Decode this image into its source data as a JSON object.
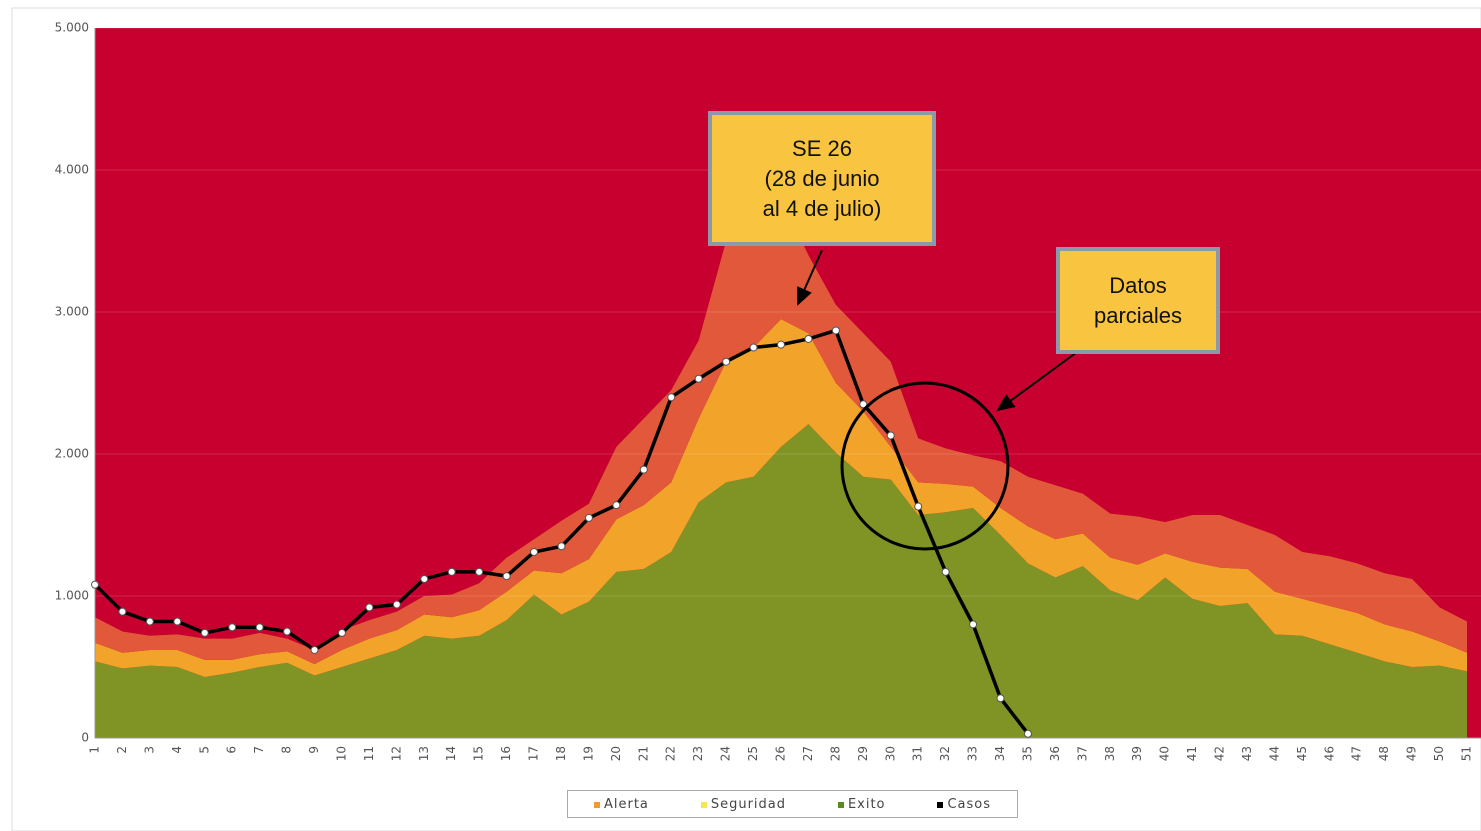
{
  "chart_data": {
    "type": "area",
    "categories": [
      "1",
      "2",
      "3",
      "4",
      "5",
      "6",
      "7",
      "8",
      "9",
      "10",
      "11",
      "12",
      "13",
      "14",
      "15",
      "16",
      "17",
      "18",
      "19",
      "20",
      "21",
      "22",
      "23",
      "24",
      "25",
      "26",
      "27",
      "28",
      "29",
      "30",
      "31",
      "32",
      "33",
      "34",
      "35",
      "36",
      "37",
      "38",
      "39",
      "40",
      "41",
      "42",
      "43",
      "44",
      "45",
      "46",
      "47",
      "48",
      "49",
      "50",
      "51"
    ],
    "series": [
      {
        "name": "Exito",
        "color": "#7f9424",
        "values": [
          540,
          490,
          510,
          500,
          430,
          460,
          500,
          530,
          440,
          500,
          560,
          620,
          720,
          700,
          720,
          830,
          1010,
          870,
          960,
          1170,
          1190,
          1310,
          1660,
          1800,
          1840,
          2050,
          2210,
          2010,
          1840,
          1820,
          1570,
          1590,
          1620,
          1430,
          1230,
          1130,
          1210,
          1040,
          970,
          1130,
          980,
          930,
          950,
          730,
          720,
          660,
          600,
          540,
          500,
          510,
          470
        ]
      },
      {
        "name": "Seguridad",
        "color": "#f2a42a",
        "values": [
          130,
          110,
          110,
          120,
          120,
          90,
          90,
          80,
          80,
          120,
          140,
          140,
          150,
          150,
          180,
          200,
          170,
          290,
          300,
          370,
          450,
          490,
          590,
          850,
          910,
          900,
          640,
          490,
          460,
          230,
          230,
          200,
          150,
          190,
          260,
          270,
          230,
          230,
          250,
          170,
          260,
          270,
          240,
          300,
          260,
          270,
          280,
          260,
          250,
          170,
          130
        ]
      },
      {
        "name": "Alerta",
        "color": "#e2583a",
        "values": [
          180,
          150,
          100,
          110,
          150,
          150,
          150,
          90,
          100,
          140,
          130,
          130,
          130,
          160,
          190,
          240,
          220,
          370,
          390,
          510,
          610,
          650,
          550,
          850,
          1050,
          850,
          550,
          550,
          550,
          600,
          310,
          250,
          220,
          330,
          350,
          380,
          280,
          310,
          340,
          220,
          330,
          370,
          310,
          400,
          330,
          350,
          350,
          360,
          370,
          240,
          220
        ]
      },
      {
        "name": "Casos",
        "color": "#000000",
        "line": true,
        "values": [
          1080,
          890,
          820,
          820,
          740,
          780,
          780,
          750,
          620,
          740,
          920,
          940,
          1120,
          1170,
          1170,
          1140,
          1310,
          1350,
          1550,
          1640,
          1890,
          2400,
          2530,
          2650,
          2750,
          2770,
          2810,
          2870,
          2350,
          2130,
          1630,
          1170,
          800,
          280,
          30,
          null,
          null,
          null,
          null,
          null,
          null,
          null,
          null,
          null,
          null,
          null,
          null,
          null,
          null,
          null,
          null
        ]
      }
    ],
    "background_color": "#c8002f",
    "ylim": [
      0,
      5000
    ],
    "yticks": [
      0,
      {
        "value": 1000,
        "label": "1.000"
      },
      {
        "value": 2000,
        "label": "2.000"
      },
      {
        "value": 3000,
        "label": "3.000"
      },
      {
        "value": 4000,
        "label": "4.000"
      },
      {
        "value": 5000,
        "label": "5.000"
      }
    ],
    "grid": true,
    "annotations": [
      {
        "lines": [
          "SE 26",
          "(28  de junio",
          "al 4 de julio)"
        ]
      },
      {
        "lines": [
          "Datos",
          "parciales"
        ]
      }
    ]
  }
}
